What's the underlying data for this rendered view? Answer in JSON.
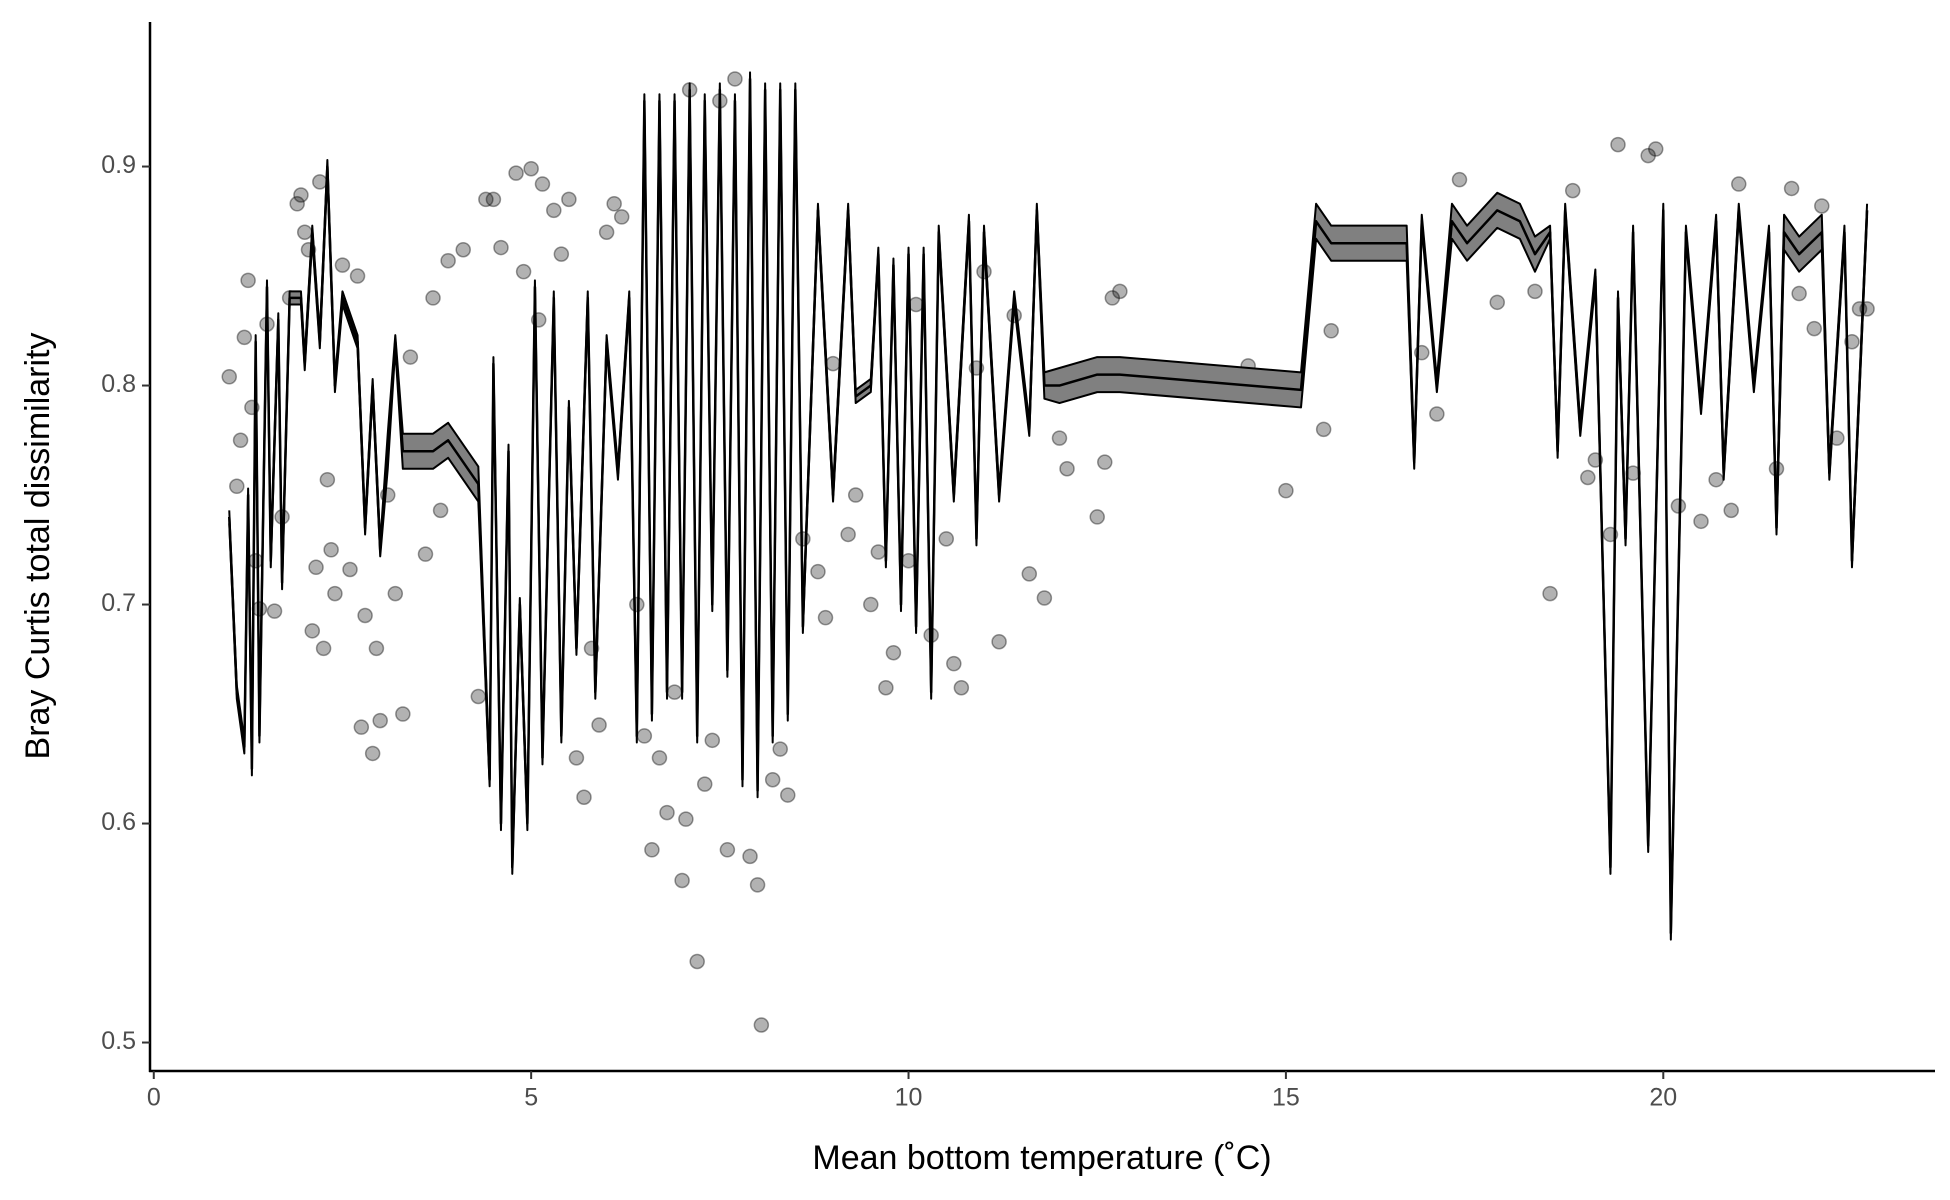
{
  "chart_data": {
    "type": "scatter",
    "x_label": "Mean bottom temperature (˚C)",
    "y_label": "Bray Curtis total dissimilarity",
    "xlim": [
      -0.05,
      23.6
    ],
    "ylim": [
      0.487,
      0.966
    ],
    "xticks": [
      0,
      5,
      10,
      15,
      20
    ],
    "yticks": [
      0.5,
      0.6,
      0.7,
      0.8,
      0.9
    ],
    "points": {
      "color": "#000000",
      "opacity": 0.3,
      "x": [
        1.0,
        1.1,
        1.15,
        1.2,
        1.25,
        1.3,
        1.35,
        1.4,
        1.5,
        1.6,
        1.7,
        1.8,
        1.9,
        1.95,
        2.0,
        2.05,
        2.1,
        2.15,
        2.2,
        2.25,
        2.3,
        2.35,
        2.4,
        2.5,
        2.6,
        2.7,
        2.75,
        2.8,
        2.9,
        2.95,
        3.0,
        3.1,
        3.2,
        3.3,
        3.4,
        3.6,
        3.7,
        3.8,
        3.9,
        4.1,
        4.3,
        4.4,
        4.5,
        4.6,
        4.8,
        4.9,
        5.0,
        5.1,
        5.15,
        5.3,
        5.4,
        5.5,
        5.6,
        5.7,
        5.8,
        5.9,
        6.0,
        6.1,
        6.2,
        6.4,
        6.5,
        6.6,
        6.7,
        6.8,
        6.9,
        7.0,
        7.05,
        7.1,
        7.2,
        7.3,
        7.4,
        7.5,
        7.6,
        7.7,
        7.9,
        8.0,
        8.05,
        8.2,
        8.3,
        8.4,
        8.6,
        8.8,
        8.9,
        9.0,
        9.2,
        9.3,
        9.5,
        9.6,
        9.7,
        9.8,
        10.0,
        10.1,
        10.3,
        10.5,
        10.6,
        10.7,
        10.9,
        11.0,
        11.2,
        11.4,
        11.6,
        11.8,
        12.0,
        12.1,
        12.5,
        12.6,
        12.7,
        12.8,
        14.5,
        15.0,
        15.5,
        15.6,
        16.8,
        17.0,
        17.3,
        17.8,
        18.3,
        18.5,
        18.8,
        19.0,
        19.1,
        19.3,
        19.4,
        19.6,
        19.8,
        19.9,
        20.2,
        20.5,
        20.7,
        20.9,
        21.0,
        21.5,
        21.7,
        21.8,
        22.0,
        22.1,
        22.3,
        22.5,
        22.6,
        22.7
      ],
      "y": [
        0.804,
        0.754,
        0.775,
        0.822,
        0.848,
        0.79,
        0.72,
        0.698,
        0.828,
        0.697,
        0.74,
        0.84,
        0.883,
        0.887,
        0.87,
        0.862,
        0.688,
        0.717,
        0.893,
        0.68,
        0.757,
        0.725,
        0.705,
        0.855,
        0.716,
        0.85,
        0.644,
        0.695,
        0.632,
        0.68,
        0.647,
        0.75,
        0.705,
        0.65,
        0.813,
        0.723,
        0.84,
        0.743,
        0.857,
        0.862,
        0.658,
        0.885,
        0.885,
        0.863,
        0.897,
        0.852,
        0.899,
        0.83,
        0.892,
        0.88,
        0.86,
        0.885,
        0.63,
        0.612,
        0.68,
        0.645,
        0.87,
        0.883,
        0.877,
        0.7,
        0.64,
        0.588,
        0.63,
        0.605,
        0.66,
        0.574,
        0.602,
        0.935,
        0.537,
        0.618,
        0.638,
        0.93,
        0.588,
        0.94,
        0.585,
        0.572,
        0.508,
        0.62,
        0.634,
        0.613,
        0.73,
        0.715,
        0.694,
        0.81,
        0.732,
        0.75,
        0.7,
        0.724,
        0.662,
        0.678,
        0.72,
        0.837,
        0.686,
        0.73,
        0.673,
        0.662,
        0.808,
        0.852,
        0.683,
        0.832,
        0.714,
        0.703,
        0.776,
        0.762,
        0.74,
        0.765,
        0.84,
        0.843,
        0.809,
        0.752,
        0.78,
        0.825,
        0.815,
        0.787,
        0.894,
        0.838,
        0.843,
        0.705,
        0.889,
        0.758,
        0.766,
        0.732,
        0.91,
        0.76,
        0.905,
        0.908,
        0.745,
        0.738,
        0.757,
        0.743,
        0.892,
        0.762,
        0.89,
        0.842,
        0.826,
        0.882,
        0.776,
        0.82,
        0.835,
        0.835
      ]
    },
    "fit": {
      "color": "#000000",
      "band_color": "#808080",
      "x": [
        1.0,
        1.1,
        1.2,
        1.25,
        1.3,
        1.35,
        1.4,
        1.5,
        1.55,
        1.65,
        1.7,
        1.8,
        1.95,
        2.0,
        2.1,
        2.2,
        2.3,
        2.4,
        2.5,
        2.6,
        2.7,
        2.8,
        2.9,
        3.0,
        3.1,
        3.2,
        3.3,
        3.5,
        3.7,
        3.9,
        4.1,
        4.3,
        4.45,
        4.5,
        4.6,
        4.7,
        4.75,
        4.85,
        4.95,
        5.05,
        5.15,
        5.3,
        5.4,
        5.5,
        5.6,
        5.75,
        5.85,
        6.0,
        6.15,
        6.3,
        6.4,
        6.5,
        6.6,
        6.7,
        6.8,
        6.9,
        7.0,
        7.1,
        7.2,
        7.3,
        7.4,
        7.5,
        7.6,
        7.7,
        7.8,
        7.9,
        8.0,
        8.1,
        8.2,
        8.3,
        8.4,
        8.5,
        8.6,
        8.8,
        9.0,
        9.2,
        9.3,
        9.5,
        9.6,
        9.7,
        9.8,
        9.9,
        10.0,
        10.1,
        10.2,
        10.3,
        10.4,
        10.6,
        10.8,
        10.9,
        11.0,
        11.2,
        11.4,
        11.6,
        11.7,
        11.8,
        12.0,
        12.5,
        12.8,
        15.2,
        15.4,
        15.6,
        16.6,
        16.7,
        16.8,
        17.0,
        17.2,
        17.4,
        17.8,
        18.1,
        18.3,
        18.5,
        18.6,
        18.7,
        18.9,
        19.1,
        19.3,
        19.4,
        19.5,
        19.6,
        19.8,
        20.0,
        20.1,
        20.3,
        20.5,
        20.7,
        20.8,
        21.0,
        21.2,
        21.4,
        21.5,
        21.6,
        21.8,
        22.1,
        22.2,
        22.4,
        22.5,
        22.7
      ],
      "values": [
        0.74,
        0.66,
        0.635,
        0.75,
        0.625,
        0.82,
        0.64,
        0.845,
        0.72,
        0.83,
        0.71,
        0.84,
        0.84,
        0.81,
        0.87,
        0.82,
        0.9,
        0.8,
        0.84,
        0.83,
        0.82,
        0.735,
        0.8,
        0.725,
        0.77,
        0.82,
        0.77,
        0.77,
        0.77,
        0.775,
        0.765,
        0.755,
        0.62,
        0.81,
        0.6,
        0.77,
        0.58,
        0.7,
        0.6,
        0.845,
        0.63,
        0.84,
        0.64,
        0.79,
        0.68,
        0.84,
        0.66,
        0.82,
        0.76,
        0.84,
        0.64,
        0.93,
        0.65,
        0.93,
        0.66,
        0.93,
        0.66,
        0.935,
        0.64,
        0.93,
        0.7,
        0.935,
        0.67,
        0.93,
        0.62,
        0.94,
        0.615,
        0.935,
        0.64,
        0.935,
        0.65,
        0.935,
        0.69,
        0.88,
        0.75,
        0.88,
        0.795,
        0.8,
        0.86,
        0.72,
        0.855,
        0.7,
        0.86,
        0.69,
        0.86,
        0.66,
        0.87,
        0.75,
        0.875,
        0.73,
        0.87,
        0.75,
        0.84,
        0.78,
        0.88,
        0.8,
        0.8,
        0.805,
        0.805,
        0.798,
        0.875,
        0.865,
        0.865,
        0.765,
        0.875,
        0.8,
        0.875,
        0.865,
        0.88,
        0.875,
        0.86,
        0.87,
        0.77,
        0.88,
        0.78,
        0.85,
        0.58,
        0.84,
        0.73,
        0.87,
        0.59,
        0.88,
        0.55,
        0.87,
        0.79,
        0.875,
        0.76,
        0.88,
        0.8,
        0.87,
        0.735,
        0.87,
        0.86,
        0.87,
        0.76,
        0.87,
        0.72,
        0.88
      ],
      "lower": [
        0.737,
        0.657,
        0.632,
        0.747,
        0.622,
        0.817,
        0.637,
        0.842,
        0.717,
        0.827,
        0.707,
        0.837,
        0.837,
        0.807,
        0.867,
        0.817,
        0.897,
        0.797,
        0.837,
        0.827,
        0.817,
        0.732,
        0.797,
        0.722,
        0.762,
        0.817,
        0.762,
        0.762,
        0.762,
        0.767,
        0.757,
        0.747,
        0.617,
        0.807,
        0.597,
        0.767,
        0.577,
        0.697,
        0.597,
        0.842,
        0.627,
        0.837,
        0.637,
        0.787,
        0.677,
        0.837,
        0.657,
        0.817,
        0.757,
        0.837,
        0.637,
        0.927,
        0.647,
        0.927,
        0.657,
        0.927,
        0.657,
        0.932,
        0.637,
        0.927,
        0.697,
        0.932,
        0.667,
        0.927,
        0.617,
        0.937,
        0.612,
        0.932,
        0.637,
        0.932,
        0.647,
        0.932,
        0.687,
        0.877,
        0.747,
        0.877,
        0.792,
        0.797,
        0.857,
        0.717,
        0.852,
        0.697,
        0.857,
        0.687,
        0.857,
        0.657,
        0.867,
        0.747,
        0.872,
        0.727,
        0.867,
        0.747,
        0.837,
        0.777,
        0.877,
        0.794,
        0.792,
        0.797,
        0.797,
        0.79,
        0.867,
        0.857,
        0.857,
        0.762,
        0.872,
        0.797,
        0.867,
        0.857,
        0.872,
        0.867,
        0.852,
        0.867,
        0.767,
        0.877,
        0.777,
        0.847,
        0.577,
        0.837,
        0.727,
        0.867,
        0.587,
        0.877,
        0.547,
        0.867,
        0.787,
        0.872,
        0.757,
        0.877,
        0.797,
        0.867,
        0.732,
        0.862,
        0.852,
        0.862,
        0.757,
        0.867,
        0.717,
        0.877
      ],
      "upper": [
        0.743,
        0.663,
        0.638,
        0.753,
        0.628,
        0.823,
        0.643,
        0.848,
        0.723,
        0.833,
        0.713,
        0.843,
        0.843,
        0.813,
        0.873,
        0.823,
        0.903,
        0.803,
        0.843,
        0.833,
        0.823,
        0.738,
        0.803,
        0.728,
        0.778,
        0.823,
        0.778,
        0.778,
        0.778,
        0.783,
        0.773,
        0.763,
        0.623,
        0.813,
        0.603,
        0.773,
        0.583,
        0.703,
        0.603,
        0.848,
        0.633,
        0.843,
        0.643,
        0.793,
        0.683,
        0.843,
        0.663,
        0.823,
        0.763,
        0.843,
        0.643,
        0.933,
        0.653,
        0.933,
        0.663,
        0.933,
        0.663,
        0.938,
        0.643,
        0.933,
        0.703,
        0.938,
        0.673,
        0.933,
        0.623,
        0.943,
        0.618,
        0.938,
        0.643,
        0.938,
        0.653,
        0.938,
        0.693,
        0.883,
        0.753,
        0.883,
        0.798,
        0.803,
        0.863,
        0.723,
        0.858,
        0.703,
        0.863,
        0.693,
        0.863,
        0.663,
        0.873,
        0.753,
        0.878,
        0.733,
        0.873,
        0.753,
        0.843,
        0.783,
        0.883,
        0.806,
        0.808,
        0.813,
        0.813,
        0.806,
        0.883,
        0.873,
        0.873,
        0.768,
        0.878,
        0.803,
        0.883,
        0.873,
        0.888,
        0.883,
        0.868,
        0.873,
        0.773,
        0.883,
        0.783,
        0.853,
        0.583,
        0.843,
        0.733,
        0.873,
        0.593,
        0.883,
        0.553,
        0.873,
        0.793,
        0.878,
        0.763,
        0.883,
        0.803,
        0.873,
        0.738,
        0.878,
        0.868,
        0.878,
        0.763,
        0.873,
        0.723,
        0.883
      ]
    }
  }
}
